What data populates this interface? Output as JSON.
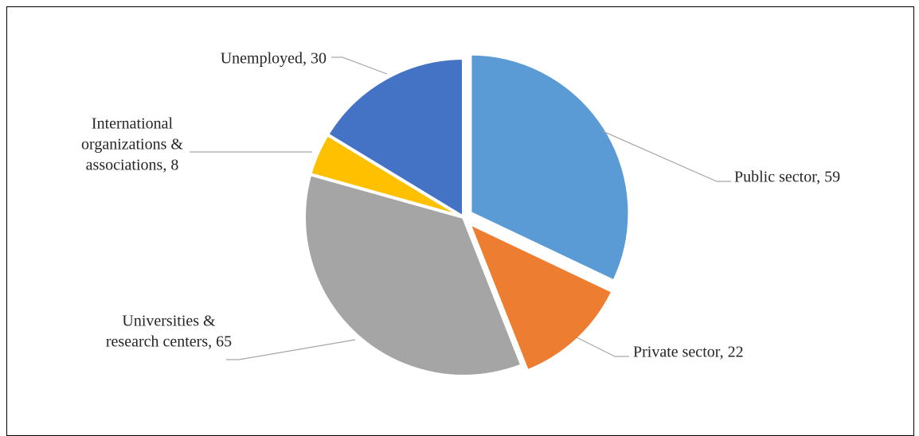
{
  "chart_data": {
    "type": "pie",
    "title": "",
    "slices": [
      {
        "label": "Public sector",
        "value": 59,
        "color": "#5b9bd5",
        "label_lines": [
          "Public sector, 59"
        ],
        "exploded": true
      },
      {
        "label": "Private sector",
        "value": 22,
        "color": "#ed7d31",
        "label_lines": [
          "Private sector, 22"
        ],
        "exploded": true
      },
      {
        "label": "Universities & research centers",
        "value": 65,
        "color": "#a5a5a5",
        "label_lines": [
          "Universities &",
          "research centers, 65"
        ],
        "exploded": false
      },
      {
        "label": "International organizations & associations",
        "value": 8,
        "color": "#ffc000",
        "label_lines": [
          "International",
          "organizations &",
          "associations, 8"
        ],
        "exploded": false
      },
      {
        "label": "Unemployed",
        "value": 30,
        "color": "#4472c4",
        "label_lines": [
          "Unemployed, 30"
        ],
        "exploded": false
      }
    ],
    "legend": "none"
  }
}
